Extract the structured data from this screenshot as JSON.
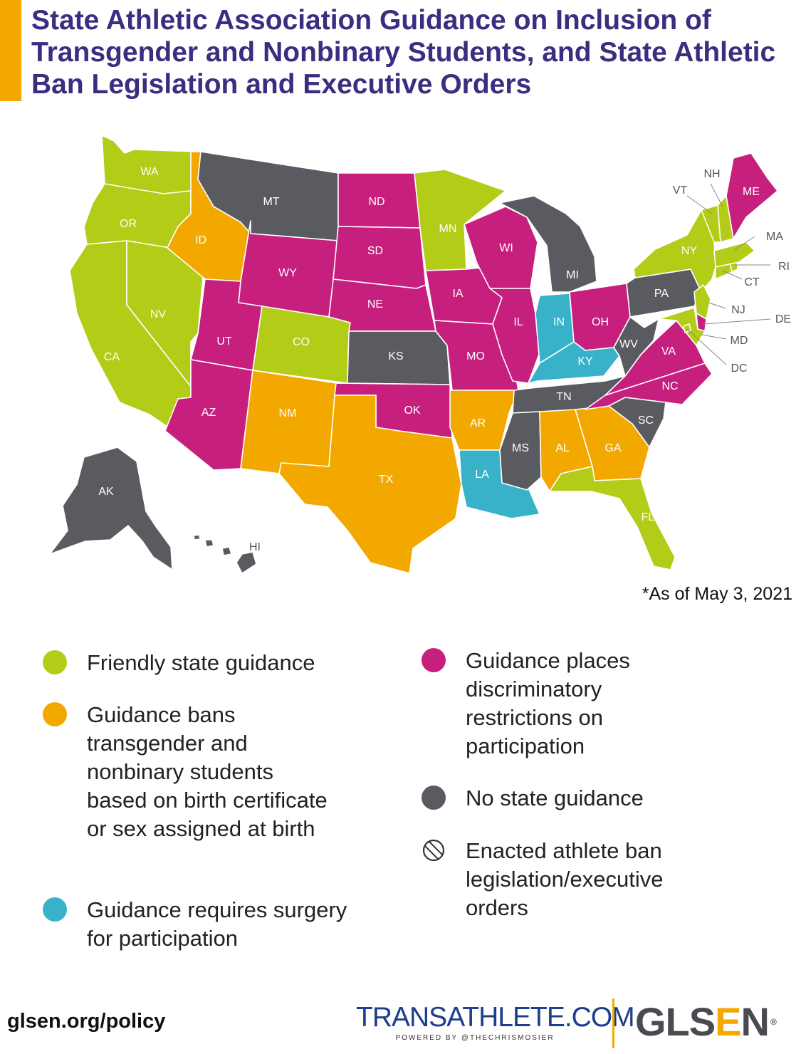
{
  "title": "State Athletic Association Guidance on Inclusion of Transgender and Nonbinary Students, and State Athletic Ban Legislation and Executive Orders",
  "as_of": "*As of May 3, 2021",
  "colors": {
    "friendly": "#b2cc17",
    "bans": "#f3a800",
    "surgery": "#38b2c8",
    "restrictions": "#c61f7e",
    "none": "#5a5b60",
    "title": "#3b2d80",
    "accent": "#f3a800"
  },
  "legend": {
    "friendly": "Friendly state guidance",
    "bans": "Guidance bans transgender and nonbinary students based on birth certificate or sex assigned at birth",
    "surgery": "Guidance requires surgery for participation",
    "restrictions": "Guidance places discriminatory restrictions on participation",
    "none": "No state guidance",
    "hatched": "Enacted athlete ban legislation/executive orders",
    "hatched_icon": "hatched-circle-icon"
  },
  "states": {
    "WA": {
      "label": "WA",
      "category": "friendly",
      "ban": false
    },
    "OR": {
      "label": "OR",
      "category": "friendly",
      "ban": false
    },
    "CA": {
      "label": "CA",
      "category": "friendly",
      "ban": false
    },
    "NV": {
      "label": "NV",
      "category": "friendly",
      "ban": false
    },
    "ID": {
      "label": "ID",
      "category": "bans",
      "ban": true
    },
    "MT": {
      "label": "MT",
      "category": "none",
      "ban": false
    },
    "WY": {
      "label": "WY",
      "category": "restrictions",
      "ban": false
    },
    "UT": {
      "label": "UT",
      "category": "restrictions",
      "ban": false
    },
    "CO": {
      "label": "CO",
      "category": "friendly",
      "ban": false
    },
    "AZ": {
      "label": "AZ",
      "category": "restrictions",
      "ban": false
    },
    "NM": {
      "label": "NM",
      "category": "bans",
      "ban": false
    },
    "ND": {
      "label": "ND",
      "category": "restrictions",
      "ban": false
    },
    "SD": {
      "label": "SD",
      "category": "restrictions",
      "ban": true
    },
    "NE": {
      "label": "NE",
      "category": "restrictions",
      "ban": false
    },
    "KS": {
      "label": "KS",
      "category": "none",
      "ban": false
    },
    "OK": {
      "label": "OK",
      "category": "restrictions",
      "ban": false
    },
    "TX": {
      "label": "TX",
      "category": "bans",
      "ban": false
    },
    "MN": {
      "label": "MN",
      "category": "friendly",
      "ban": false
    },
    "IA": {
      "label": "IA",
      "category": "restrictions",
      "ban": false
    },
    "MO": {
      "label": "MO",
      "category": "restrictions",
      "ban": false
    },
    "AR": {
      "label": "AR",
      "category": "bans",
      "ban": true
    },
    "LA": {
      "label": "LA",
      "category": "surgery",
      "ban": false
    },
    "WI": {
      "label": "WI",
      "category": "restrictions",
      "ban": false
    },
    "IL": {
      "label": "IL",
      "category": "restrictions",
      "ban": false
    },
    "MI": {
      "label": "MI",
      "category": "none",
      "ban": false
    },
    "IN": {
      "label": "IN",
      "category": "surgery",
      "ban": false
    },
    "OH": {
      "label": "OH",
      "category": "restrictions",
      "ban": false
    },
    "KY": {
      "label": "KY",
      "category": "surgery",
      "ban": false
    },
    "TN": {
      "label": "TN",
      "category": "none",
      "ban": true
    },
    "MS": {
      "label": "MS",
      "category": "none",
      "ban": true
    },
    "AL": {
      "label": "AL",
      "category": "bans",
      "ban": true
    },
    "GA": {
      "label": "GA",
      "category": "bans",
      "ban": false
    },
    "FL": {
      "label": "FL",
      "category": "friendly",
      "ban": false
    },
    "SC": {
      "label": "SC",
      "category": "none",
      "ban": false
    },
    "NC": {
      "label": "NC",
      "category": "restrictions",
      "ban": false
    },
    "VA": {
      "label": "VA",
      "category": "restrictions",
      "ban": false
    },
    "WV": {
      "label": "WV",
      "category": "none",
      "ban": true
    },
    "PA": {
      "label": "PA",
      "category": "none",
      "ban": false
    },
    "NY": {
      "label": "NY",
      "category": "friendly",
      "ban": false
    },
    "ME": {
      "label": "ME",
      "category": "restrictions",
      "ban": false
    },
    "VT": {
      "label": "VT",
      "category": "friendly",
      "ban": false
    },
    "NH": {
      "label": "NH",
      "category": "friendly",
      "ban": false
    },
    "MA": {
      "label": "MA",
      "category": "friendly",
      "ban": false
    },
    "RI": {
      "label": "RI",
      "category": "friendly",
      "ban": false
    },
    "CT": {
      "label": "CT",
      "category": "friendly",
      "ban": false
    },
    "NJ": {
      "label": "NJ",
      "category": "friendly",
      "ban": false
    },
    "DE": {
      "label": "DE",
      "category": "restrictions",
      "ban": false
    },
    "MD": {
      "label": "MD",
      "category": "friendly",
      "ban": false
    },
    "DC": {
      "label": "DC",
      "category": "friendly",
      "ban": false
    },
    "AK": {
      "label": "AK",
      "category": "none",
      "ban": false
    },
    "HI": {
      "label": "HI",
      "category": "none",
      "ban": false
    }
  },
  "footer": {
    "url": "glsen.org/policy",
    "trans_logo_a": "TRANS",
    "trans_logo_b": "ATHLETE.COM",
    "trans_sub": "POWERED BY @THECHRISMOSIER",
    "glsen_a": "GLS",
    "glsen_b": "E",
    "glsen_c": "N",
    "glsen_reg": "®",
    "trans_color": "#1b3f8b",
    "glsen_color": "#4a4b50"
  }
}
